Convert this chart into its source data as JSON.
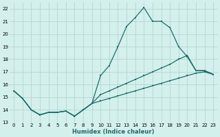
{
  "xlabel": "Humidex (Indice chaleur)",
  "bg_color": "#d4f0ec",
  "grid_color": "#b8d8d4",
  "line_color": "#1a6b6b",
  "x_values": [
    0,
    1,
    2,
    3,
    4,
    5,
    6,
    7,
    8,
    9,
    10,
    11,
    12,
    13,
    14,
    15,
    16,
    17,
    18,
    19,
    20,
    21,
    22,
    23
  ],
  "y_main": [
    15.5,
    14.9,
    14.0,
    13.6,
    13.8,
    13.8,
    13.9,
    13.5,
    14.0,
    14.5,
    16.7,
    17.5,
    19.0,
    20.6,
    21.3,
    22.1,
    21.0,
    21.0,
    20.5,
    19.0,
    18.2,
    17.1,
    17.1,
    16.8
  ],
  "y_low": [
    15.5,
    14.9,
    14.0,
    13.6,
    13.8,
    13.8,
    13.9,
    13.5,
    14.0,
    14.5,
    14.7,
    14.9,
    15.1,
    15.3,
    15.5,
    15.7,
    15.9,
    16.1,
    16.3,
    16.5,
    16.7,
    16.9,
    17.0,
    16.8
  ],
  "y_high": [
    15.5,
    14.9,
    14.0,
    13.6,
    13.8,
    13.8,
    13.9,
    13.5,
    14.0,
    14.5,
    15.2,
    15.5,
    15.8,
    16.1,
    16.4,
    16.7,
    17.0,
    17.3,
    17.6,
    18.0,
    18.3,
    17.1,
    17.1,
    16.8
  ],
  "ylim": [
    13.0,
    22.5
  ],
  "xlim": [
    -0.5,
    23.5
  ],
  "yticks": [
    13,
    14,
    15,
    16,
    17,
    18,
    19,
    20,
    21,
    22
  ],
  "xticks": [
    0,
    1,
    2,
    3,
    4,
    5,
    6,
    7,
    8,
    9,
    10,
    11,
    12,
    13,
    14,
    15,
    16,
    17,
    18,
    19,
    20,
    21,
    22,
    23
  ],
  "tick_fontsize": 5.0,
  "xlabel_fontsize": 6.0,
  "marker_size": 2.0,
  "line_width": 0.9
}
